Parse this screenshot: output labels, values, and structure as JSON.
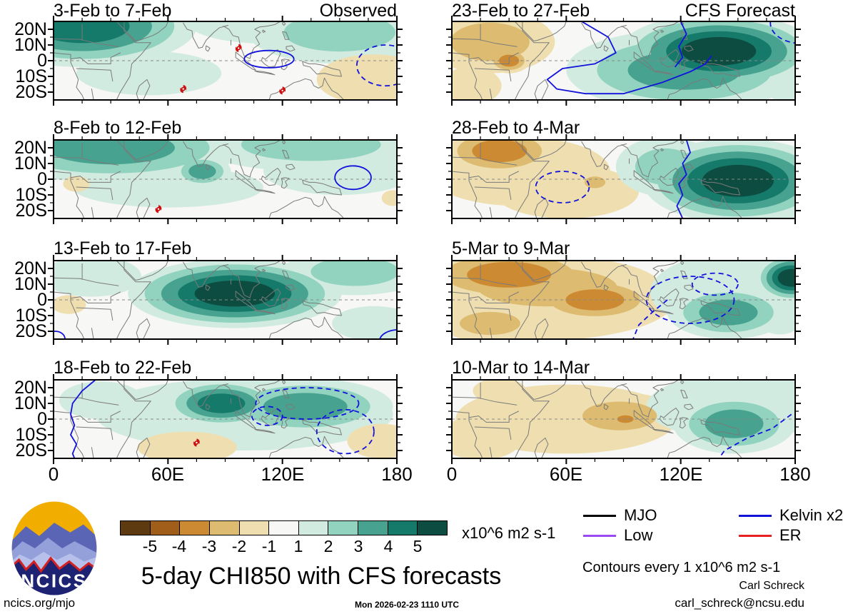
{
  "title": "5-day CHI850 with CFS forecasts",
  "axes": {
    "lat": [
      "20N",
      "10N",
      "0",
      "10S",
      "20S"
    ],
    "lon": [
      "0",
      "60E",
      "120E",
      "180"
    ]
  },
  "colorbar": {
    "cells": [
      "#5e3a10",
      "#a05e1a",
      "#cc8b33",
      "#ddbb70",
      "#efdfb0",
      "#f7f7f5",
      "#d2ebe0",
      "#92d3bf",
      "#47a390",
      "#157a6a",
      "#0d4c40"
    ],
    "ticks": [
      "-5",
      "-4",
      "-3",
      "-2",
      "-1",
      "1",
      "2",
      "3",
      "4",
      "5"
    ],
    "units": "x10^6 m2 s-1"
  },
  "legend": [
    {
      "label": "MJO",
      "color": "#000000"
    },
    {
      "label": "Kelvin x2",
      "color": "#1212dd"
    },
    {
      "label": "Low",
      "color": "#9a4bef"
    },
    {
      "label": "ER",
      "color": "#e82020"
    }
  ],
  "notes": {
    "contours": "Contours every 1 x10^6 m2 s-1",
    "credit_name": "Carl Schreck",
    "credit_email": "carl_schreck@ncsu.edu",
    "site": "ncics.org/mjo",
    "timestamp": "Mon 2026-02-23 1110 UTC"
  },
  "logo": {
    "text": "NCICS"
  },
  "chart_data": {
    "type": "heatmap",
    "title": "5-day CHI850 with CFS forecasts",
    "units": "x10^6 m2 s-1",
    "contour_interval": 1,
    "lon_domain_deg": [
      0,
      180
    ],
    "lat_domain_deg": [
      -25,
      25
    ],
    "levels": [
      -5,
      -4,
      -3,
      -2,
      -1,
      1,
      2,
      3,
      4,
      5
    ],
    "legend_waves": [
      "MJO",
      "Kelvin x2",
      "Low",
      "ER"
    ],
    "panels": [
      {
        "label": "3-Feb to 7-Feb",
        "tag": "Observed",
        "column": "observed",
        "row": 0,
        "anomalies": [
          [
            15,
            22,
            60,
            26,
            4
          ],
          [
            150,
            18,
            48,
            20,
            2
          ],
          [
            110,
            25,
            40,
            14,
            1
          ],
          [
            50,
            -8,
            38,
            14,
            1
          ],
          [
            168,
            -12,
            30,
            16,
            -1
          ]
        ],
        "contours": [
          [
            "solid",
            "ellipse",
            113,
            1,
            13,
            5.5
          ],
          [
            "dashed",
            "ellipse",
            174,
            -3,
            15,
            13
          ]
        ],
        "cyclones": [
          [
            97,
            8
          ],
          [
            68,
            -18
          ],
          [
            120,
            -19
          ]
        ]
      },
      {
        "label": "23-Feb to 27-Feb",
        "tag": "CFS Forecast",
        "column": "forecast",
        "row": 0,
        "anomalies": [
          [
            20,
            12,
            34,
            20,
            -2
          ],
          [
            30,
            0,
            11,
            8,
            -3
          ],
          [
            10,
            -16,
            16,
            12,
            -1
          ],
          [
            140,
            6,
            52,
            24,
            5
          ],
          [
            122,
            -6,
            62,
            26,
            3
          ],
          [
            176,
            -19,
            10,
            8,
            1
          ]
        ],
        "contours": [
          [
            "solid",
            "pline",
            [
              [
                68,
                25
              ],
              [
                82,
                15
              ],
              [
                86,
                5
              ],
              [
                75,
                -2
              ],
              [
                58,
                -5
              ],
              [
                50,
                -12
              ],
              [
                55,
                -18
              ],
              [
                70,
                -21
              ],
              [
                90,
                -21
              ],
              [
                110,
                -14
              ],
              [
                125,
                -7
              ],
              [
                133,
                -2
              ],
              [
                136,
                3
              ]
            ]
          ],
          [
            "solid",
            "pline",
            [
              [
                120,
                25
              ],
              [
                123,
                17
              ],
              [
                119,
                9
              ],
              [
                121,
                2
              ],
              [
                117,
                -4
              ]
            ]
          ],
          [
            "dashed",
            "ellipse",
            183,
            24,
            16,
            13
          ]
        ],
        "cyclones": []
      },
      {
        "label": "8-Feb to 12-Feb",
        "tag": "",
        "column": "observed",
        "row": 1,
        "anomalies": [
          [
            30,
            20,
            70,
            22,
            3
          ],
          [
            78,
            5,
            15,
            10,
            3
          ],
          [
            135,
            22,
            60,
            17,
            2
          ],
          [
            60,
            -5,
            50,
            13,
            1
          ],
          [
            150,
            5,
            40,
            15,
            1
          ],
          [
            12,
            -3,
            7,
            5,
            -1
          ],
          [
            178,
            -12,
            6,
            5,
            -1
          ]
        ],
        "contours": [
          [
            "solid",
            "ellipse",
            157,
            1,
            9.5,
            7.5
          ]
        ],
        "cyclones": [
          [
            55,
            -19
          ]
        ]
      },
      {
        "label": "28-Feb to 4-Mar",
        "tag": "",
        "column": "forecast",
        "row": 1,
        "anomalies": [
          [
            25,
            18,
            30,
            15,
            -3
          ],
          [
            35,
            5,
            48,
            22,
            -1
          ],
          [
            60,
            -8,
            38,
            17,
            -1
          ],
          [
            75,
            -2,
            9,
            6,
            -2
          ],
          [
            150,
            -1,
            50,
            27,
            5
          ],
          [
            112,
            8,
            26,
            19,
            2
          ],
          [
            178,
            -20,
            8,
            6,
            1
          ]
        ],
        "contours": [
          [
            "solid",
            "pline",
            [
              [
                123,
                25
              ],
              [
                125,
                17
              ],
              [
                121,
                10
              ],
              [
                123,
                3
              ],
              [
                119,
                -3
              ],
              [
                121,
                -10
              ],
              [
                118,
                -17
              ],
              [
                121,
                -25
              ]
            ]
          ],
          [
            "dashed",
            "ellipse",
            58,
            -5,
            14,
            10
          ]
        ],
        "cyclones": []
      },
      {
        "label": "13-Feb to 17-Feb",
        "tag": "",
        "column": "observed",
        "row": 2,
        "anomalies": [
          [
            95,
            4,
            56,
            22,
            5
          ],
          [
            158,
            18,
            38,
            15,
            2
          ],
          [
            20,
            15,
            26,
            13,
            1
          ],
          [
            8,
            -3,
            9,
            6,
            -1
          ],
          [
            168,
            -15,
            22,
            11,
            1
          ]
        ],
        "contours": [
          [
            "solid",
            "ellipse",
            1,
            -25,
            5,
            5
          ],
          [
            "solid",
            "ellipse",
            181,
            -26,
            10,
            7
          ]
        ],
        "cyclones": []
      },
      {
        "label": "5-Mar to 9-Mar",
        "tag": "",
        "column": "forecast",
        "row": 2,
        "anomalies": [
          [
            30,
            16,
            46,
            17,
            -3
          ],
          [
            75,
            0,
            32,
            14,
            -3
          ],
          [
            50,
            8,
            60,
            20,
            -2
          ],
          [
            45,
            0,
            72,
            26,
            -1
          ],
          [
            20,
            -15,
            26,
            12,
            -2
          ],
          [
            145,
            -8,
            32,
            17,
            3
          ],
          [
            178,
            14,
            19,
            15,
            5
          ],
          [
            150,
            5,
            46,
            25,
            1
          ],
          [
            172,
            -15,
            10,
            7,
            1
          ]
        ],
        "contours": [
          [
            "dashed",
            "ellipse",
            125,
            0,
            23,
            15
          ],
          [
            "dashed",
            "ellipse",
            138,
            10,
            12,
            7
          ],
          [
            "dashed",
            "pline",
            [
              [
                113,
                0
              ],
              [
                105,
                -8
              ],
              [
                98,
                -16
              ],
              [
                95,
                -25
              ]
            ]
          ]
        ],
        "cyclones": []
      },
      {
        "label": "18-Feb to 22-Feb",
        "tag": "",
        "column": "observed",
        "row": 3,
        "anomalies": [
          [
            88,
            10,
            30,
            15,
            4
          ],
          [
            132,
            8,
            46,
            18,
            3
          ],
          [
            100,
            3,
            78,
            23,
            1
          ],
          [
            25,
            12,
            22,
            12,
            1
          ],
          [
            70,
            -18,
            26,
            10,
            -1
          ],
          [
            172,
            -14,
            18,
            11,
            -1
          ]
        ],
        "contours": [
          [
            "solid",
            "pline",
            [
              [
                22,
                25
              ],
              [
                15,
                18
              ],
              [
                10,
                10
              ],
              [
                9,
                3
              ],
              [
                11,
                -4
              ],
              [
                9,
                -10
              ],
              [
                12,
                -16
              ],
              [
                10,
                -22
              ],
              [
                11,
                -25
              ]
            ]
          ],
          [
            "dashed",
            "ellipse",
            112,
            2,
            8,
            6
          ],
          [
            "dashed",
            "ellipse",
            133,
            10,
            27,
            10
          ],
          [
            "dashed",
            "ellipse",
            153,
            -8,
            15,
            14
          ]
        ],
        "cyclones": [
          [
            75,
            -15
          ]
        ]
      },
      {
        "label": "10-Mar to 14-Mar",
        "tag": "",
        "column": "forecast",
        "row": 3,
        "anomalies": [
          [
            88,
            2,
            32,
            15,
            -2
          ],
          [
            91,
            0,
            9,
            5,
            -3
          ],
          [
            60,
            0,
            58,
            22,
            -1
          ],
          [
            15,
            -12,
            22,
            14,
            -1
          ],
          [
            25,
            18,
            14,
            8,
            -1
          ],
          [
            148,
            -3,
            32,
            19,
            3
          ],
          [
            150,
            8,
            48,
            21,
            1
          ]
        ],
        "contours": [
          [
            "dashed",
            "pline",
            [
              [
                178,
                3
              ],
              [
                168,
                -6
              ],
              [
                155,
                -12
              ],
              [
                143,
                -20
              ],
              [
                140,
                -25
              ]
            ]
          ]
        ],
        "cyclones": []
      }
    ]
  }
}
